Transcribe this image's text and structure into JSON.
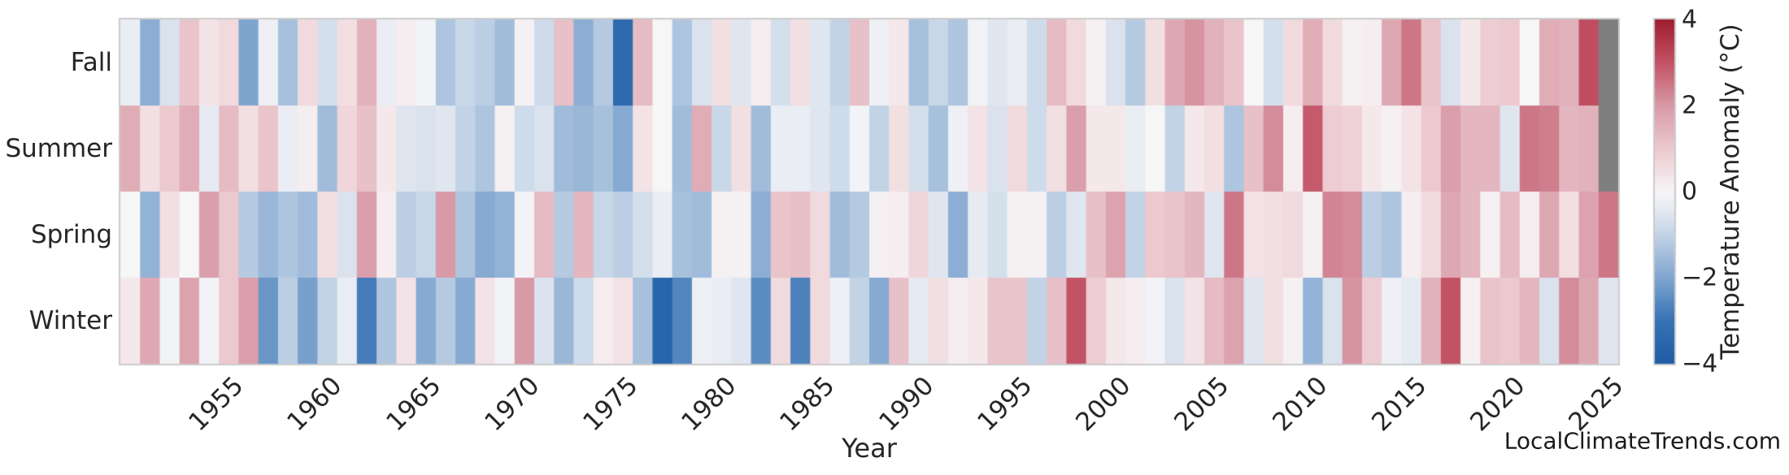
{
  "watermark": "LocalClimateTrends.com",
  "chart_data": {
    "type": "heatmap",
    "title": "",
    "xlabel": "Year",
    "x_range": [
      1950,
      2025
    ],
    "x_ticks": [
      1955,
      1960,
      1965,
      1970,
      1975,
      1980,
      1985,
      1990,
      1995,
      2000,
      2005,
      2010,
      2015,
      2020,
      2025
    ],
    "categories": [
      "Fall",
      "Summer",
      "Spring",
      "Winter"
    ],
    "series": [
      {
        "name": "Fall",
        "values": [
          -0.3,
          -1.8,
          -0.6,
          1.1,
          0.4,
          0.6,
          -2.0,
          -0.2,
          -1.4,
          0.6,
          -0.7,
          0.5,
          1.5,
          -0.3,
          0.2,
          -0.1,
          -1.3,
          -0.9,
          -1.1,
          -1.5,
          0.1,
          -0.8,
          1.2,
          -1.8,
          -1.2,
          -3.4,
          1.3,
          0.0,
          -1.3,
          -0.6,
          0.5,
          -0.5,
          0.2,
          -0.7,
          0.5,
          -0.5,
          -1.0,
          1.2,
          -0.2,
          0.3,
          -1.4,
          -0.9,
          -1.3,
          -0.1,
          -0.5,
          -0.3,
          -0.8,
          1.3,
          0.6,
          0.1,
          -0.6,
          -1.2,
          0.5,
          1.7,
          2.1,
          1.5,
          1.1,
          0.0,
          -0.7,
          0.6,
          1.6,
          0.6,
          0.1,
          0.2,
          1.7,
          2.5,
          1.1,
          -0.6,
          0.3,
          0.9,
          1.0,
          0.0,
          1.6,
          1.5,
          3.1,
          null
        ]
      },
      {
        "name": "Summer",
        "values": [
          1.6,
          0.5,
          1.0,
          1.6,
          -0.4,
          1.3,
          0.5,
          1.1,
          -0.3,
          0.2,
          -1.5,
          0.7,
          1.2,
          0.3,
          -0.5,
          -0.6,
          -0.5,
          -1.0,
          -1.3,
          0.1,
          -0.8,
          -0.6,
          -1.5,
          -1.6,
          -1.4,
          -1.9,
          0.4,
          0.0,
          -1.5,
          1.6,
          -0.9,
          0.5,
          -1.5,
          -0.3,
          -0.3,
          -0.5,
          -0.8,
          -0.1,
          -1.0,
          0.5,
          -0.7,
          -1.4,
          -0.2,
          0.4,
          -0.6,
          0.6,
          -0.8,
          0.5,
          1.9,
          0.3,
          0.3,
          -0.3,
          0.0,
          -1.0,
          0.3,
          0.5,
          -1.3,
          1.2,
          2.2,
          0.2,
          2.9,
          0.9,
          0.8,
          0.3,
          0.1,
          0.4,
          1.0,
          1.9,
          1.4,
          1.4,
          -0.5,
          2.5,
          2.4,
          1.4,
          1.5,
          null
        ]
      },
      {
        "name": "Spring",
        "values": [
          0.0,
          -1.7,
          0.5,
          0.0,
          1.9,
          1.0,
          -1.2,
          -1.6,
          -1.3,
          -1.5,
          0.5,
          -0.6,
          1.9,
          0.2,
          -1.1,
          -0.9,
          2.0,
          -1.3,
          -1.9,
          -1.7,
          -0.1,
          1.3,
          -1.2,
          1.4,
          -0.9,
          -1.1,
          -0.7,
          -0.3,
          -1.4,
          -1.5,
          0.1,
          0.1,
          -1.8,
          1.1,
          1.2,
          0.6,
          -1.5,
          -1.2,
          0.1,
          0.2,
          0.7,
          -0.5,
          -1.8,
          -0.4,
          -0.7,
          0.1,
          0.1,
          -1.1,
          -0.5,
          1.2,
          1.8,
          -1.0,
          1.0,
          1.1,
          1.4,
          -0.5,
          2.5,
          0.4,
          0.5,
          0.6,
          0.1,
          2.3,
          2.2,
          -1.1,
          -1.3,
          0.2,
          0.6,
          1.7,
          1.4,
          0.1,
          1.3,
          0.2,
          1.7,
          0.5,
          1.8,
          2.5
        ]
      },
      {
        "name": "Winter",
        "values": [
          0.3,
          1.7,
          -0.1,
          1.8,
          -0.1,
          1.0,
          1.9,
          -2.3,
          -1.1,
          -2.1,
          -1.0,
          -0.3,
          -2.8,
          -1.3,
          0.4,
          -1.9,
          -1.2,
          -1.9,
          0.4,
          -0.1,
          2.0,
          -0.6,
          -1.6,
          -0.8,
          0.2,
          0.4,
          -1.4,
          -3.6,
          -2.6,
          -0.2,
          -0.3,
          -0.5,
          -2.5,
          0.6,
          -2.7,
          0.6,
          -0.2,
          -1.0,
          -1.9,
          1.2,
          -0.4,
          0.5,
          0.2,
          0.3,
          1.1,
          1.1,
          -1.0,
          1.2,
          3.0,
          0.9,
          0.3,
          0.2,
          -0.1,
          -0.6,
          0.4,
          1.3,
          1.8,
          -0.5,
          0.5,
          0.1,
          -1.7,
          -0.6,
          2.1,
          0.9,
          -0.2,
          -0.4,
          1.5,
          3.0,
          0.1,
          1.1,
          1.0,
          1.4,
          -0.6,
          2.2,
          1.7,
          -0.5
        ]
      }
    ],
    "colorbar": {
      "label": "Temperature Anomaly (°C)",
      "tick_labels": [
        "4",
        "2",
        "0",
        "−2",
        "−4"
      ],
      "vmin": -4,
      "vmax": 4
    },
    "legend": "colorbar-right",
    "grid": false,
    "colors": {
      "background": "#ffffff",
      "border": "#cbcbcb",
      "text": "#262626",
      "missing_cell": "#7f7f7f",
      "palette_stops": [
        {
          "v": -4.0,
          "c": "#1e5ca5"
        },
        {
          "v": -3.0,
          "c": "#3672b4"
        },
        {
          "v": -2.0,
          "c": "#7fa5cf"
        },
        {
          "v": -1.0,
          "c": "#c2d3e6"
        },
        {
          "v": -0.4,
          "c": "#e6eaf2"
        },
        {
          "v": 0.0,
          "c": "#f6f6f7"
        },
        {
          "v": 0.4,
          "c": "#f3e3e6"
        },
        {
          "v": 1.0,
          "c": "#ecc9cf"
        },
        {
          "v": 2.0,
          "c": "#d89aa7"
        },
        {
          "v": 3.0,
          "c": "#c25365"
        },
        {
          "v": 4.0,
          "c": "#a11d31"
        }
      ]
    }
  }
}
